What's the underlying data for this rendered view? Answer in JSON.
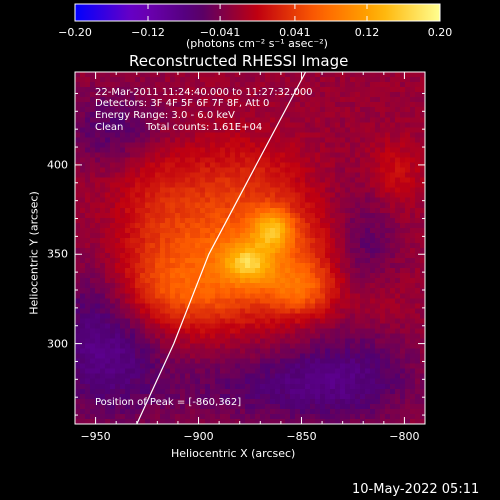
{
  "chart_data": {
    "type": "heatmap",
    "title": "Reconstructed RHESSI Image",
    "xlabel": "Heliocentric X (arcsec)",
    "ylabel": "Heliocentric Y (arcsec)",
    "xlim": [
      -960,
      -790
    ],
    "ylim": [
      255,
      452
    ],
    "x_ticks": [
      -950,
      -900,
      -850,
      -800
    ],
    "y_ticks": [
      300,
      350,
      400
    ],
    "x_tick_labels": [
      "−950",
      "−900",
      "−850",
      "−800"
    ],
    "y_tick_labels": [
      "300",
      "350",
      "400"
    ],
    "colorbar": {
      "range": [
        -0.2,
        0.2
      ],
      "ticks": [
        -0.2,
        -0.12,
        -0.041,
        0.041,
        0.12,
        0.2
      ],
      "tick_labels": [
        "−0.20",
        "−0.12",
        "−0.041",
        "0.041",
        "0.12",
        "0.20"
      ],
      "colormap": [
        "#0000ff",
        "#7000c0",
        "#500070",
        "#c00010",
        "#ff6000",
        "#ffb000",
        "#ffff90"
      ]
    },
    "unit_label": "(photons cm⁻² s⁻¹ asec⁻²)",
    "annotations": {
      "time_range": "22-Mar-2011 11:24:40.000 to 11:27:32.000",
      "detectors": "Detectors: 3F 4F 5F 6F 7F 8F, Att 0",
      "energy": "Energy Range: 3.0 - 6.0 keV",
      "method": "Clean",
      "counts": "Total counts: 1.61E+04",
      "peak": "Position of Peak = [-860,362]"
    },
    "peak": [
      -860,
      362
    ],
    "sources": [
      {
        "x": -864,
        "y": 364,
        "amp": 0.1,
        "sx": 7,
        "sy": 8
      },
      {
        "x": -876,
        "y": 345,
        "amp": 0.09,
        "sx": 8,
        "sy": 7
      },
      {
        "x": -865,
        "y": 348,
        "amp": 0.07,
        "sx": 26,
        "sy": 22
      },
      {
        "x": -895,
        "y": 355,
        "amp": 0.05,
        "sx": 24,
        "sy": 28
      },
      {
        "x": -850,
        "y": 330,
        "amp": 0.06,
        "sx": 12,
        "sy": 10
      },
      {
        "x": -925,
        "y": 335,
        "amp": 0.04,
        "sx": 14,
        "sy": 18
      },
      {
        "x": -905,
        "y": 325,
        "amp": 0.04,
        "sx": 18,
        "sy": 14
      },
      {
        "x": -920,
        "y": 385,
        "amp": 0.03,
        "sx": 16,
        "sy": 22
      },
      {
        "x": -875,
        "y": 395,
        "amp": 0.03,
        "sx": 18,
        "sy": 16
      },
      {
        "x": -805,
        "y": 395,
        "amp": 0.035,
        "sx": 9,
        "sy": 13
      },
      {
        "x": -815,
        "y": 325,
        "amp": 0.025,
        "sx": 10,
        "sy": 12
      },
      {
        "x": -945,
        "y": 300,
        "amp": -0.06,
        "sx": 20,
        "sy": 30
      },
      {
        "x": -830,
        "y": 280,
        "amp": -0.05,
        "sx": 26,
        "sy": 18
      },
      {
        "x": -940,
        "y": 420,
        "amp": -0.04,
        "sx": 18,
        "sy": 16
      },
      {
        "x": -820,
        "y": 350,
        "amp": -0.045,
        "sx": 12,
        "sy": 26
      },
      {
        "x": -880,
        "y": 275,
        "amp": -0.03,
        "sx": 30,
        "sy": 14
      }
    ],
    "limb_curve": [
      [
        -930,
        255
      ],
      [
        -912,
        300
      ],
      [
        -895,
        350
      ],
      [
        -872,
        400
      ],
      [
        -848,
        452
      ]
    ]
  },
  "footer": {
    "timestamp": "10-May-2022 05:11"
  }
}
